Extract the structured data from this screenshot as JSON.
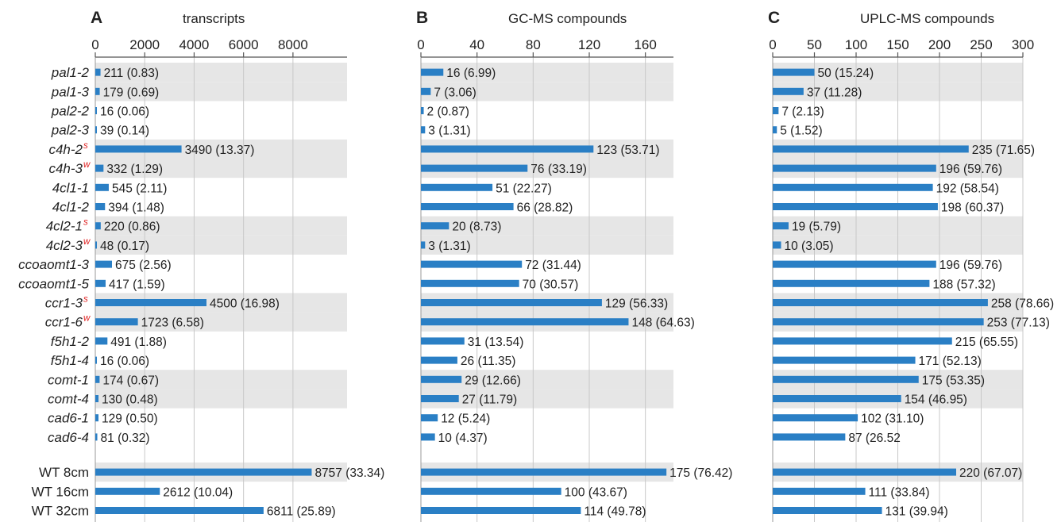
{
  "chart_data": {
    "type": "bar",
    "orientation": "horizontal",
    "categories": [
      "pal1-2",
      "pal1-3",
      "pal2-2",
      "pal2-3",
      "c4h-2",
      "c4h-3",
      "4cl1-1",
      "4cl1-2",
      "4cl2-1",
      "4cl2-3",
      "ccoaomt1-3",
      "ccoaomt1-5",
      "ccr1-3",
      "ccr1-6",
      "f5h1-2",
      "f5h1-4",
      "comt-1",
      "comt-4",
      "cad6-1",
      "cad6-4",
      "WT 8cm",
      "WT 16cm",
      "WT 32cm"
    ],
    "category_italic": [
      true,
      true,
      true,
      true,
      true,
      true,
      true,
      true,
      true,
      true,
      true,
      true,
      true,
      true,
      true,
      true,
      true,
      true,
      true,
      true,
      false,
      false,
      false
    ],
    "category_superscripts": [
      "",
      "",
      "",
      "",
      "s",
      "w",
      "",
      "",
      "s",
      "w",
      "",
      "",
      "s",
      "w",
      "",
      "",
      "",
      "",
      "",
      "",
      "",
      "",
      ""
    ],
    "shaded_rows": [
      0,
      1,
      4,
      5,
      8,
      9,
      12,
      13,
      16,
      17,
      20
    ],
    "bar_color": "#2a7fc5",
    "band_color": "#e6e6e6",
    "superscript_color": "#e02020",
    "panels": [
      {
        "letter": "A",
        "title": "transcripts",
        "xlim": [
          0,
          9000
        ],
        "ticks": [
          0,
          2000,
          4000,
          6000,
          8000
        ],
        "tick_labels": [
          "0",
          "2000",
          "4000",
          "6000",
          "8000"
        ],
        "values": [
          211,
          179,
          16,
          39,
          3490,
          332,
          545,
          394,
          220,
          48,
          675,
          417,
          4500,
          1723,
          491,
          16,
          174,
          130,
          129,
          81,
          8757,
          2612,
          6811
        ],
        "labels": [
          "211 (0.83)",
          "179 (0.69)",
          "16 (0.06)",
          "39 (0.14)",
          "3490 (13.37)",
          "332 (1.29)",
          "545 (2.11)",
          "394 (1.48)",
          "220 (0.86)",
          "48 (0.17)",
          "675 (2.56)",
          "417 (1.59)",
          "4500 (16.98)",
          "1723 (6.58)",
          "491 (1.88)",
          "16 (0.06)",
          "174 (0.67)",
          "130 (0.48)",
          "129 (0.50)",
          "81 (0.32)",
          "8757 (33.34)",
          "2612 (10.04)",
          "6811 (25.89)"
        ]
      },
      {
        "letter": "B",
        "title": "GC-MS compounds",
        "xlim": [
          0,
          180
        ],
        "ticks": [
          0,
          40,
          80,
          120,
          160
        ],
        "tick_labels": [
          "0",
          "40",
          "80",
          "120",
          "160"
        ],
        "values": [
          16,
          7,
          2,
          3,
          123,
          76,
          51,
          66,
          20,
          3,
          72,
          70,
          129,
          148,
          31,
          26,
          29,
          27,
          12,
          10,
          175,
          100,
          114
        ],
        "labels": [
          "16 (6.99)",
          "7 (3.06)",
          "2 (0.87)",
          "3 (1.31)",
          "123 (53.71)",
          "76 (33.19)",
          "51 (22.27)",
          "66 (28.82)",
          "20 (8.73)",
          "3 (1.31)",
          "72 (31.44)",
          "70 (30.57)",
          "129 (56.33)",
          "148 (64.63)",
          "31 (13.54)",
          "26 (11.35)",
          "29 (12.66)",
          "27 (11.79)",
          "12 (5.24)",
          "10 (4.37)",
          "175 (76.42)",
          "100 (43.67)",
          "114 (49.78)"
        ]
      },
      {
        "letter": "C",
        "title": "UPLC-MS compounds",
        "xlim": [
          0,
          300
        ],
        "ticks": [
          0,
          50,
          100,
          150,
          200,
          250,
          300
        ],
        "tick_labels": [
          "0",
          "50",
          "100",
          "150",
          "200",
          "250",
          "300"
        ],
        "values": [
          50,
          37,
          7,
          5,
          235,
          196,
          192,
          198,
          19,
          10,
          196,
          188,
          258,
          253,
          215,
          171,
          175,
          154,
          102,
          87,
          220,
          111,
          131
        ],
        "labels": [
          "50 (15.24)",
          "37 (11.28)",
          "7 (2.13)",
          "5 (1.52)",
          "235 (71.65)",
          "196 (59.76)",
          "192 (58.54)",
          "198 (60.37)",
          "19 (5.79)",
          "10 (3.05)",
          "196 (59.76)",
          "188 (57.32)",
          "258 (78.66)",
          "253 (77.13)",
          "215 (65.55)",
          "171 (52.13)",
          "175 (53.35)",
          "154 (46.95)",
          "102 (31.10)",
          "87 (26.52",
          "220 (67.07)",
          "111 (33.84)",
          "131 (39.94)"
        ]
      }
    ],
    "grid": true,
    "legend": "none"
  }
}
